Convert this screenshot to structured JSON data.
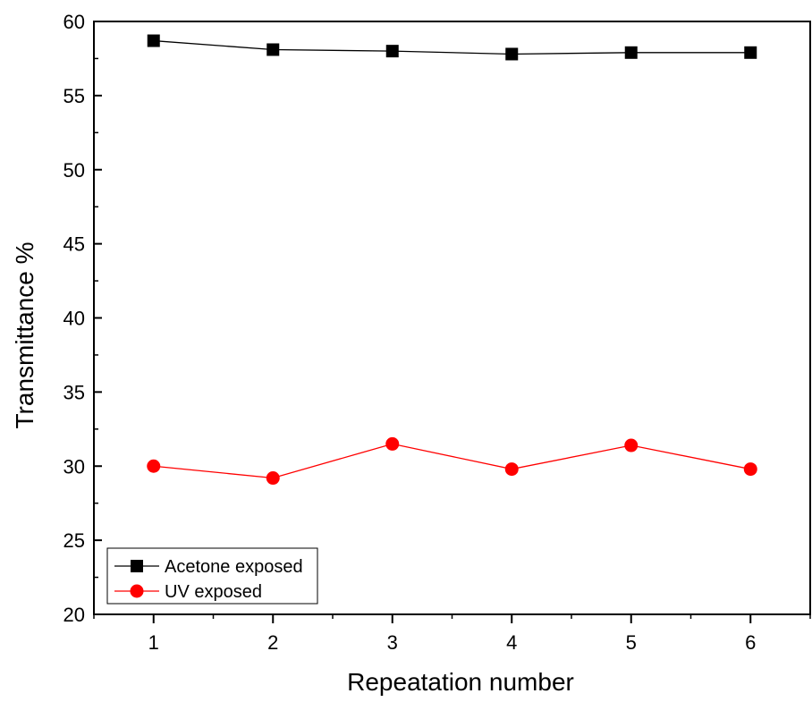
{
  "chart_data": {
    "type": "line",
    "title": "",
    "xlabel": "Repeatation number",
    "ylabel": "Transmittance %",
    "x": [
      1,
      2,
      3,
      4,
      5,
      6
    ],
    "xticks": [
      "1",
      "2",
      "3",
      "4",
      "5",
      "6"
    ],
    "xlim": [
      0.5,
      6.5
    ],
    "ylim": [
      20,
      60
    ],
    "yticks": [
      "20",
      "25",
      "30",
      "35",
      "40",
      "45",
      "50",
      "55",
      "60"
    ],
    "grid": false,
    "legend_position": "bottom-left",
    "series": [
      {
        "name": "Acetone exposed",
        "marker": "square",
        "color": "#000000",
        "values": [
          58.7,
          58.1,
          58.0,
          57.8,
          57.9,
          57.9
        ]
      },
      {
        "name": "UV exposed",
        "marker": "circle",
        "color": "#ff0000",
        "values": [
          30.0,
          29.2,
          31.5,
          29.8,
          31.4,
          29.8
        ]
      }
    ]
  }
}
